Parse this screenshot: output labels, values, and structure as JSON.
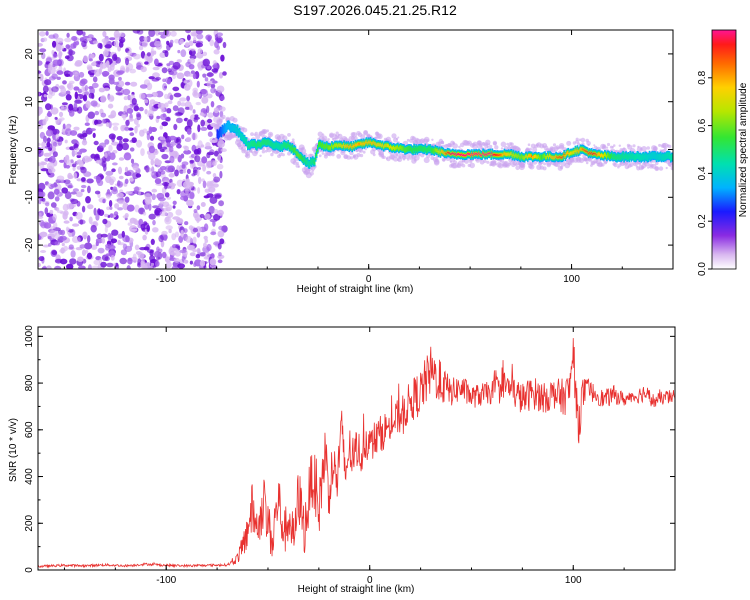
{
  "title": "S197.2026.045.21.25.R12",
  "colors": {
    "snr_line": "#e8312f",
    "spectrogram_noise": "#8a2be2",
    "ridge_core": "#e8103c"
  },
  "chart_data": [
    {
      "id": "spectrogram",
      "type": "heatmap",
      "xlabel": "Height of straight line (km)",
      "ylabel": "Frequency (Hz)",
      "xlim": [
        -163,
        150
      ],
      "ylim": [
        -25,
        25
      ],
      "xticks": [
        -100,
        0,
        100
      ],
      "xtick_labels": [
        "-100",
        "0",
        "100"
      ],
      "yticks": [
        -20,
        -10,
        0,
        10,
        20
      ],
      "ytick_labels": [
        "-20",
        "-10",
        "0",
        "10",
        "20"
      ],
      "noise_region_x": [
        -163,
        -75
      ],
      "ridge": {
        "x": [
          -75,
          -70,
          -65,
          -60,
          -55,
          -50,
          -45,
          -40,
          -35,
          -30,
          -27,
          -25,
          -20,
          -15,
          -10,
          -5,
          0,
          5,
          10,
          20,
          30,
          40,
          50,
          60,
          70,
          75,
          80,
          85,
          90,
          95,
          100,
          105,
          110,
          120,
          130,
          140,
          150
        ],
        "freq": [
          3,
          5,
          4,
          1,
          1,
          1.5,
          0.5,
          1,
          -1,
          -3,
          -2.5,
          1,
          0.5,
          1,
          0.5,
          1,
          1.5,
          1,
          0.5,
          0,
          0,
          -1,
          -1,
          -1,
          -1,
          -1.5,
          -1.5,
          -1.5,
          -1.5,
          -1.5,
          -0.5,
          0,
          -1,
          -1.5,
          -1.5,
          -1.5,
          -1.5
        ],
        "amplitude": [
          0.25,
          0.35,
          0.4,
          0.45,
          0.5,
          0.5,
          0.45,
          0.5,
          0.6,
          0.45,
          0.5,
          0.55,
          0.6,
          0.7,
          0.8,
          0.85,
          0.8,
          0.75,
          0.7,
          0.55,
          0.5,
          0.98,
          1.0,
          1.0,
          0.7,
          0.6,
          0.85,
          0.55,
          0.8,
          0.9,
          0.7,
          0.85,
          0.95,
          0.5,
          0.45,
          0.4,
          0.45
        ]
      },
      "colorbar": {
        "label": "Normalized spectral amplitude",
        "range": [
          0,
          1
        ],
        "ticks": [
          0.0,
          0.2,
          0.4,
          0.6,
          0.8
        ],
        "tick_labels": [
          "0.0",
          "0.2",
          "0.4",
          "0.6",
          "0.8"
        ]
      }
    },
    {
      "id": "snr",
      "type": "line",
      "xlabel": "Height of straight line (km)",
      "ylabel": "SNR (10 * v/v)",
      "xlim": [
        -163,
        150
      ],
      "ylim": [
        0,
        1040
      ],
      "xticks": [
        -100,
        0,
        100
      ],
      "xtick_labels": [
        "-100",
        "0",
        "100"
      ],
      "yticks": [
        0,
        200,
        400,
        600,
        800,
        1000
      ],
      "ytick_labels": [
        "0",
        "200",
        "400",
        "600",
        "800",
        "1000"
      ],
      "series": [
        {
          "name": "SNR",
          "x": [
            -163,
            -150,
            -140,
            -130,
            -120,
            -110,
            -100,
            -90,
            -80,
            -70,
            -66,
            -62,
            -58,
            -55,
            -52,
            -48,
            -45,
            -42,
            -40,
            -37,
            -35,
            -32,
            -30,
            -28,
            -25,
            -22,
            -20,
            -18,
            -16,
            -14,
            -12,
            -10,
            -8,
            -6,
            -4,
            -2,
            0,
            5,
            10,
            15,
            20,
            25,
            30,
            35,
            40,
            45,
            50,
            55,
            60,
            65,
            70,
            75,
            80,
            85,
            90,
            95,
            98,
            100,
            102,
            105,
            110,
            115,
            120,
            125,
            130,
            135,
            140,
            145,
            150
          ],
          "values": [
            15,
            20,
            18,
            22,
            18,
            25,
            20,
            18,
            20,
            22,
            40,
            100,
            260,
            180,
            290,
            120,
            310,
            150,
            230,
            130,
            330,
            170,
            300,
            420,
            250,
            510,
            330,
            450,
            380,
            600,
            410,
            520,
            470,
            520,
            490,
            560,
            540,
            580,
            620,
            660,
            720,
            760,
            850,
            800,
            760,
            780,
            740,
            750,
            760,
            800,
            770,
            730,
            760,
            740,
            750,
            740,
            760,
            940,
            620,
            760,
            760,
            730,
            750,
            730,
            740,
            760,
            720,
            740,
            740
          ],
          "amplitude": [
            5,
            5,
            5,
            5,
            5,
            5,
            5,
            5,
            5,
            5,
            15,
            60,
            120,
            90,
            110,
            90,
            130,
            100,
            100,
            90,
            130,
            110,
            130,
            140,
            110,
            140,
            110,
            110,
            100,
            120,
            90,
            100,
            90,
            90,
            80,
            90,
            80,
            80,
            80,
            80,
            90,
            100,
            110,
            90,
            60,
            60,
            50,
            50,
            50,
            60,
            70,
            70,
            70,
            70,
            70,
            80,
            90,
            60,
            130,
            70,
            40,
            40,
            40,
            30,
            30,
            40,
            30,
            30,
            30
          ]
        }
      ]
    }
  ]
}
